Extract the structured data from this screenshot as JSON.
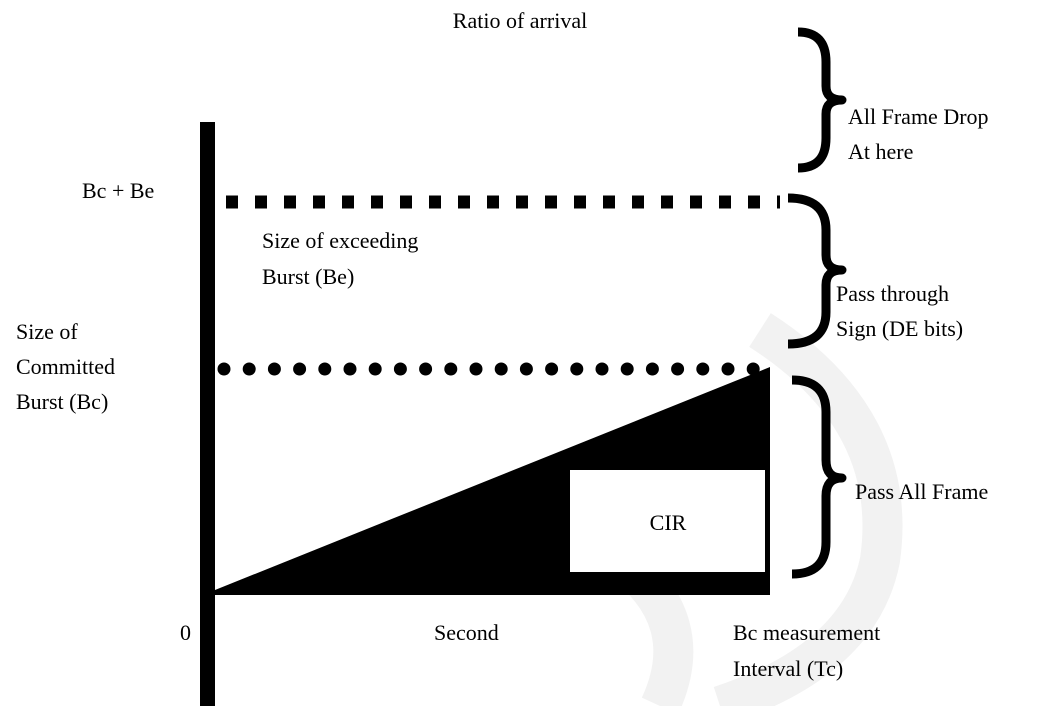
{
  "title": "Ratio of arrival",
  "levels": {
    "top": "Bc + Be",
    "bottom": "0"
  },
  "excess_burst": [
    "Size of exceeding",
    "Burst (Be)"
  ],
  "committed_burst": [
    "Size of",
    "Committed",
    "Burst (Bc)"
  ],
  "x_axis": {
    "label": "Second",
    "interval": [
      "Bc measurement",
      "Interval (Tc)"
    ]
  },
  "cir": "CIR",
  "zones": [
    {
      "lines": [
        "All Frame Drop",
        "At here"
      ]
    },
    {
      "lines": [
        "Pass through",
        "Sign (DE bits)"
      ]
    },
    {
      "lines": [
        "Pass All Frame"
      ]
    }
  ]
}
